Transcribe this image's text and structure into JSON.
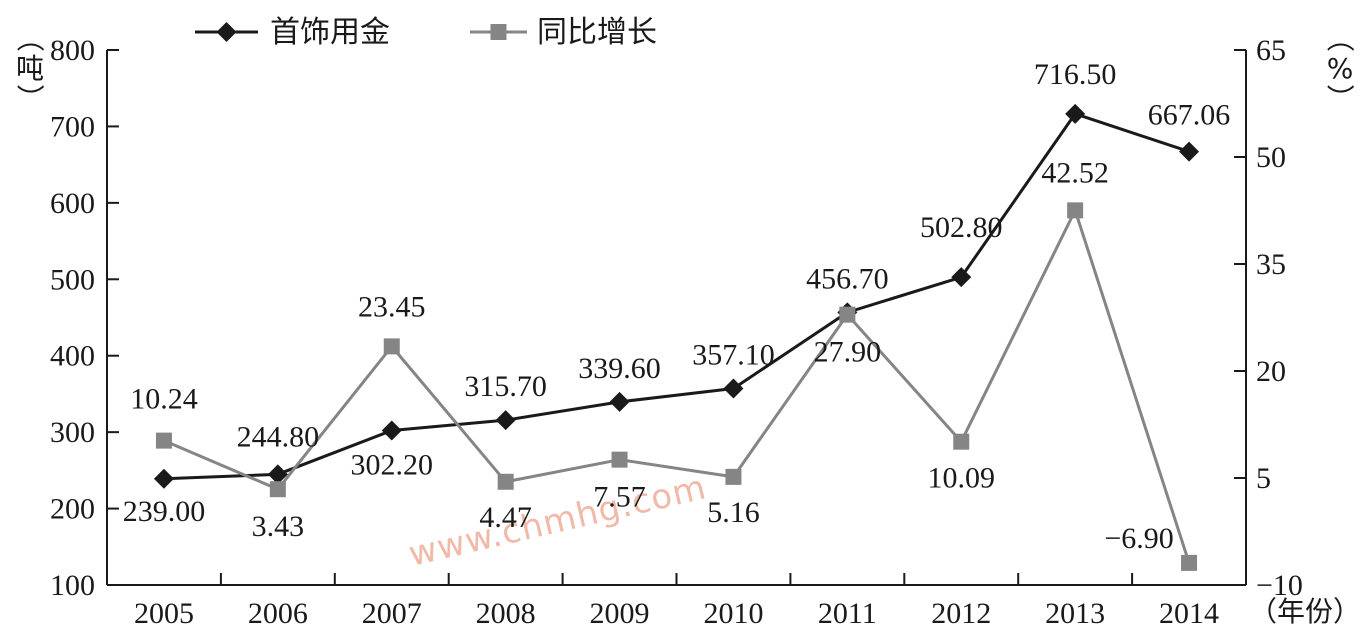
{
  "chart_data": {
    "type": "line",
    "x": [
      "2005",
      "2006",
      "2007",
      "2008",
      "2009",
      "2010",
      "2011",
      "2012",
      "2013",
      "2014"
    ],
    "x_unit_label": "（年份）",
    "left_axis": {
      "unit_label": "（吨）",
      "ylim": [
        100,
        800
      ],
      "ticks": [
        100,
        200,
        300,
        400,
        500,
        600,
        700,
        800
      ]
    },
    "right_axis": {
      "unit_label": "（%）",
      "ylim": [
        -10,
        65
      ],
      "ticks": [
        -10,
        5,
        20,
        35,
        50,
        65
      ]
    },
    "series": [
      {
        "name": "首饰用金",
        "axis": "left",
        "marker": "diamond",
        "color": "#1a1a1a",
        "values": [
          239.0,
          244.8,
          302.2,
          315.7,
          339.6,
          357.1,
          456.7,
          502.8,
          716.5,
          667.06
        ],
        "labels": [
          "239.00",
          "244.80",
          "302.20",
          "315.70",
          "339.60",
          "357.10",
          "456.70",
          "502.80",
          "716.50",
          "667.06"
        ]
      },
      {
        "name": "同比增长",
        "axis": "right",
        "marker": "square",
        "color": "#858585",
        "values": [
          10.24,
          3.43,
          23.45,
          4.47,
          7.57,
          5.16,
          27.9,
          10.09,
          42.52,
          -6.9
        ],
        "labels": [
          "10.24",
          "3.43",
          "23.45",
          "4.47",
          "7.57",
          "5.16",
          "27.90",
          "10.09",
          "42.52",
          "−6.90"
        ]
      }
    ],
    "legend_position": "top-left",
    "grid": false
  },
  "watermark": "www.chmhg.com"
}
